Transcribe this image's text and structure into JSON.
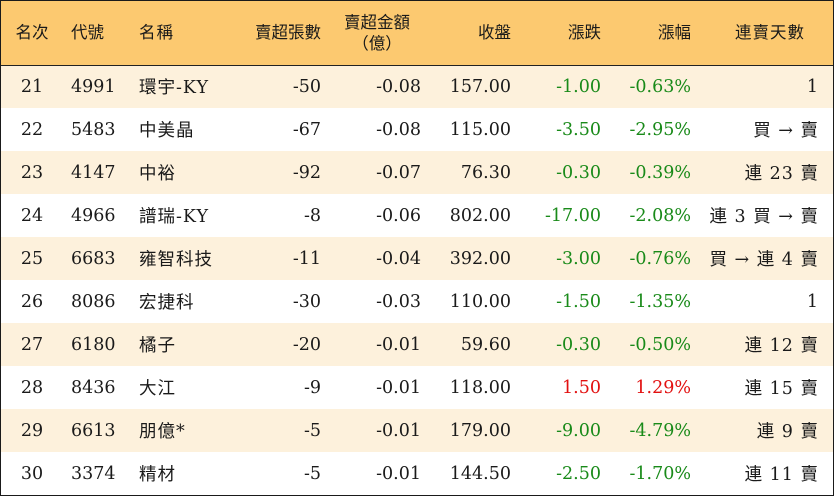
{
  "headers": {
    "rank": "名次",
    "code": "代號",
    "name": "名稱",
    "sell_lots": "賣超張數",
    "sell_amount_line1": "賣超金額",
    "sell_amount_line2": "（億）",
    "close": "收盤",
    "change": "漲跌",
    "change_pct": "漲幅",
    "streak": "連賣天數"
  },
  "colors": {
    "header_bg": "#fcc970",
    "odd_row_bg": "#fdf1dc",
    "down": "#198a19",
    "up": "#e21010"
  },
  "rows": [
    {
      "rank": "21",
      "code": "4991",
      "name": "環宇-KY",
      "sell_lots": "-50",
      "sell_amount": "-0.08",
      "close": "157.00",
      "change": "-1.00",
      "change_pct": "-0.63%",
      "streak": "1",
      "dir": "down"
    },
    {
      "rank": "22",
      "code": "5483",
      "name": "中美晶",
      "sell_lots": "-67",
      "sell_amount": "-0.08",
      "close": "115.00",
      "change": "-3.50",
      "change_pct": "-2.95%",
      "streak": "買 → 賣",
      "dir": "down"
    },
    {
      "rank": "23",
      "code": "4147",
      "name": "中裕",
      "sell_lots": "-92",
      "sell_amount": "-0.07",
      "close": "76.30",
      "change": "-0.30",
      "change_pct": "-0.39%",
      "streak": "連 23 賣",
      "dir": "down"
    },
    {
      "rank": "24",
      "code": "4966",
      "name": "譜瑞-KY",
      "sell_lots": "-8",
      "sell_amount": "-0.06",
      "close": "802.00",
      "change": "-17.00",
      "change_pct": "-2.08%",
      "streak": "連 3 買 → 賣",
      "dir": "down"
    },
    {
      "rank": "25",
      "code": "6683",
      "name": "雍智科技",
      "sell_lots": "-11",
      "sell_amount": "-0.04",
      "close": "392.00",
      "change": "-3.00",
      "change_pct": "-0.76%",
      "streak": "買 → 連 4 賣",
      "dir": "down"
    },
    {
      "rank": "26",
      "code": "8086",
      "name": "宏捷科",
      "sell_lots": "-30",
      "sell_amount": "-0.03",
      "close": "110.00",
      "change": "-1.50",
      "change_pct": "-1.35%",
      "streak": "1",
      "dir": "down"
    },
    {
      "rank": "27",
      "code": "6180",
      "name": "橘子",
      "sell_lots": "-20",
      "sell_amount": "-0.01",
      "close": "59.60",
      "change": "-0.30",
      "change_pct": "-0.50%",
      "streak": "連 12 賣",
      "dir": "down"
    },
    {
      "rank": "28",
      "code": "8436",
      "name": "大江",
      "sell_lots": "-9",
      "sell_amount": "-0.01",
      "close": "118.00",
      "change": "1.50",
      "change_pct": "1.29%",
      "streak": "連 15 賣",
      "dir": "up"
    },
    {
      "rank": "29",
      "code": "6613",
      "name": "朋億*",
      "sell_lots": "-5",
      "sell_amount": "-0.01",
      "close": "179.00",
      "change": "-9.00",
      "change_pct": "-4.79%",
      "streak": "連 9 賣",
      "dir": "down"
    },
    {
      "rank": "30",
      "code": "3374",
      "name": "精材",
      "sell_lots": "-5",
      "sell_amount": "-0.01",
      "close": "144.50",
      "change": "-2.50",
      "change_pct": "-1.70%",
      "streak": "連 11 賣",
      "dir": "down"
    }
  ]
}
